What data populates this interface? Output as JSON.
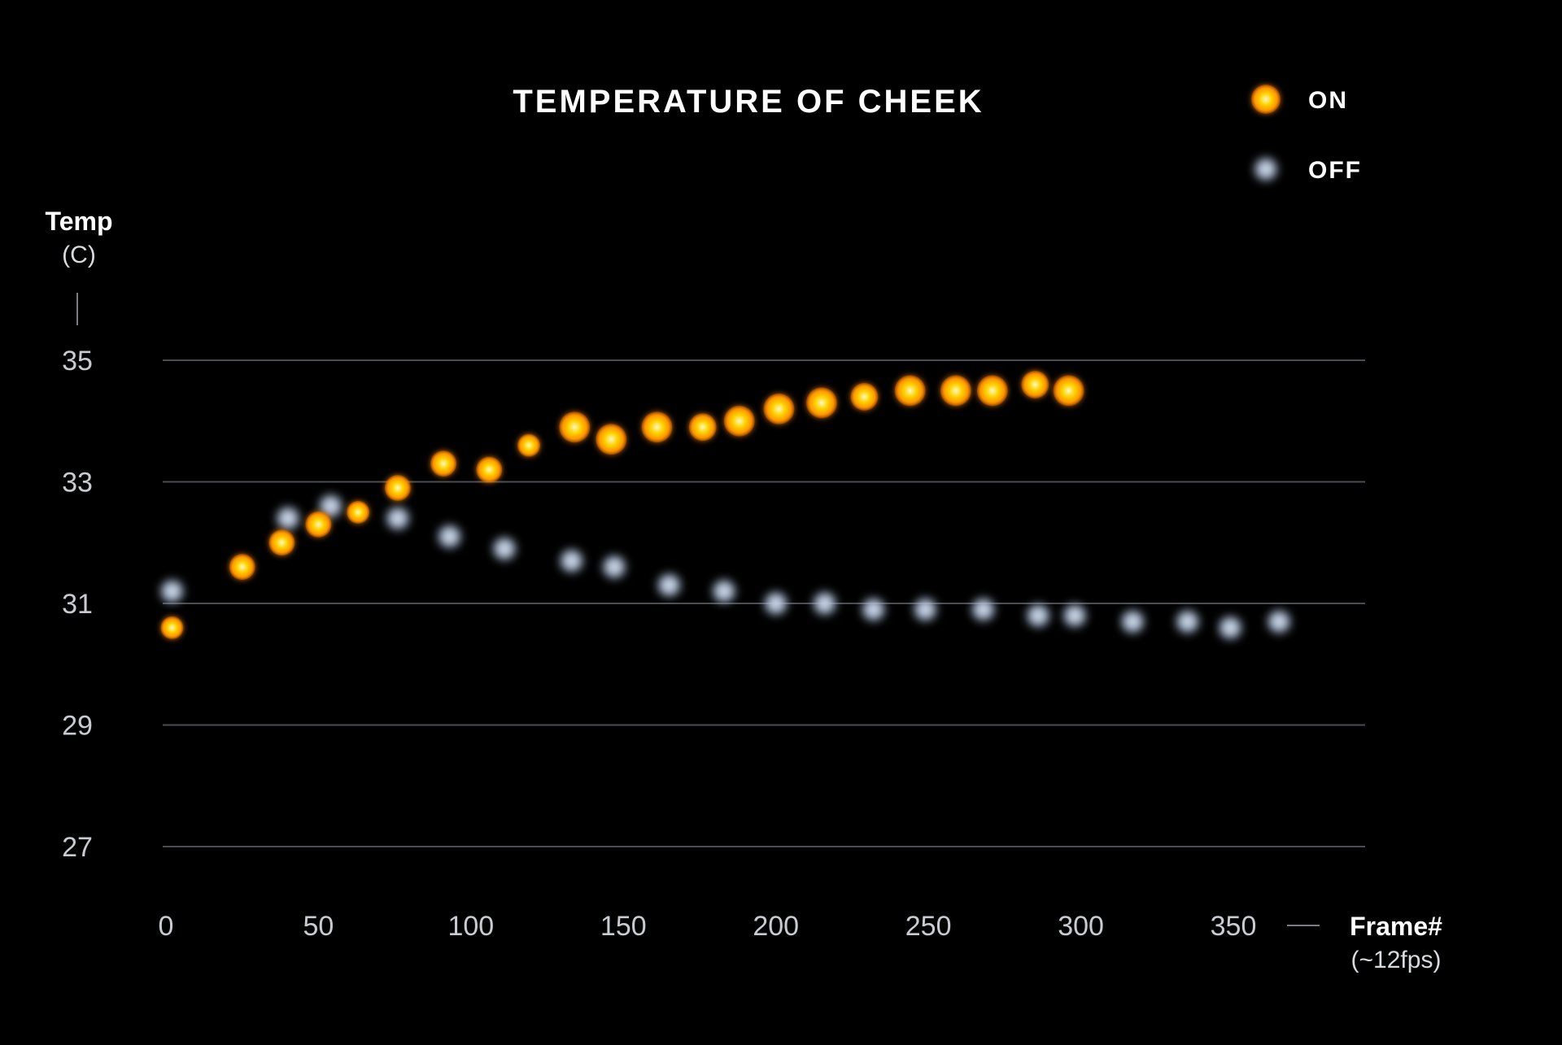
{
  "chart_data": {
    "type": "scatter",
    "title": "TEMPERATURE OF CHEEK",
    "ylabel": "Temp",
    "ylabel_unit": "(C)",
    "xlabel": "Frame#",
    "xlabel_sub": "(~12fps)",
    "ylim": [
      26,
      37
    ],
    "xlim": [
      0,
      385
    ],
    "yticks": [
      35,
      33,
      31,
      29,
      27
    ],
    "xticks": [
      0,
      50,
      100,
      150,
      200,
      250,
      300,
      350
    ],
    "grid": true,
    "legend_position": "top-right",
    "colors": {
      "ON": "#ffb300",
      "OFF": "#9fb0c8"
    },
    "series": [
      {
        "name": "ON",
        "x": [
          2,
          25,
          38,
          50,
          63,
          76,
          91,
          106,
          119,
          134,
          146,
          161,
          176,
          188,
          201,
          215,
          229,
          244,
          259,
          271,
          285,
          296
        ],
        "y": [
          30.6,
          31.6,
          32.0,
          32.3,
          32.5,
          32.9,
          33.3,
          33.2,
          33.6,
          33.9,
          33.7,
          33.9,
          33.9,
          34.0,
          34.2,
          34.3,
          34.4,
          34.5,
          34.5,
          34.5,
          34.6,
          34.5
        ]
      },
      {
        "name": "OFF",
        "x": [
          2,
          40,
          54,
          76,
          93,
          111,
          133,
          147,
          165,
          183,
          200,
          216,
          232,
          249,
          268,
          286,
          298,
          317,
          335,
          349,
          365
        ],
        "y": [
          31.2,
          32.4,
          32.6,
          32.4,
          32.1,
          31.9,
          31.7,
          31.6,
          31.3,
          31.2,
          31.0,
          31.0,
          30.9,
          30.9,
          30.9,
          30.8,
          30.8,
          30.7,
          30.7,
          30.6,
          30.7
        ]
      }
    ]
  }
}
